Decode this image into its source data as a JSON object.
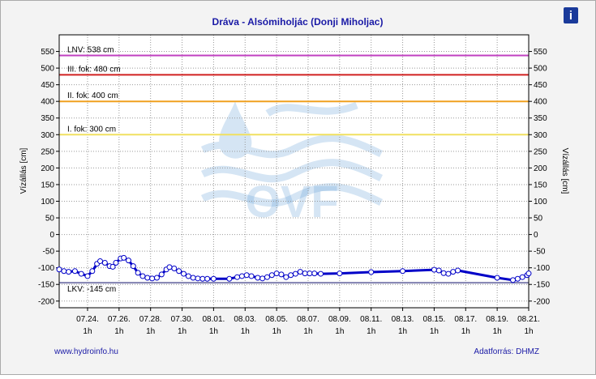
{
  "chart_data": {
    "type": "line",
    "title": "Dráva - Alsómiholjác (Donji Miholjac)",
    "y_label": "Vízállás [cm]",
    "y2_label": "Vízállás [cm]",
    "footer_left": "www.hydroinfo.hu",
    "footer_right": "Adatforrás: DHMZ",
    "info_icon": "i",
    "watermark": "OVF",
    "ylim": [
      -220,
      600
    ],
    "yticks": [
      -200,
      -150,
      -100,
      -50,
      0,
      50,
      100,
      150,
      200,
      250,
      300,
      350,
      400,
      450,
      500,
      550
    ],
    "xlim": [
      -1.8,
      28
    ],
    "xticks": [
      {
        "value": 0,
        "label": "07.24."
      },
      {
        "value": 2,
        "label": "07.26."
      },
      {
        "value": 4,
        "label": "07.28."
      },
      {
        "value": 6,
        "label": "07.30."
      },
      {
        "value": 8,
        "label": "08.01."
      },
      {
        "value": 10,
        "label": "08.03."
      },
      {
        "value": 12,
        "label": "08.05."
      },
      {
        "value": 14,
        "label": "08.07."
      },
      {
        "value": 16,
        "label": "08.09."
      },
      {
        "value": 18,
        "label": "08.11."
      },
      {
        "value": 20,
        "label": "08.13."
      },
      {
        "value": 22,
        "label": "08.15."
      },
      {
        "value": 24,
        "label": "08.17."
      },
      {
        "value": 26,
        "label": "08.19."
      },
      {
        "value": 28,
        "label": "08.21."
      }
    ],
    "xtick_hour_labels": [
      "1h",
      "1h",
      "1h",
      "1h",
      "1h",
      "1h",
      "1h",
      "1h",
      "1h",
      "1h",
      "1h",
      "1h",
      "1h",
      "1h",
      "1h"
    ],
    "grid": true,
    "reference_lines": [
      {
        "label": "LNV: 538 cm",
        "value": 538,
        "color": "#c040c0"
      },
      {
        "label": "III. fok: 480 cm",
        "value": 480,
        "color": "#d02020"
      },
      {
        "label": "II. fok: 400 cm",
        "value": 400,
        "color": "#f0a020"
      },
      {
        "label": "I. fok: 300 cm",
        "value": 300,
        "color": "#f0e060"
      },
      {
        "label": "LKV: -145 cm",
        "value": -145,
        "color": "#8080b0"
      }
    ],
    "series": [
      {
        "color": "#0000c8",
        "x": [
          -1.8,
          -1.5,
          -1.2,
          -0.8,
          -0.4,
          0,
          0.3,
          0.6,
          0.8,
          1.1,
          1.4,
          1.6,
          1.8,
          2.1,
          2.3,
          2.6,
          2.9,
          3.2,
          3.5,
          3.8,
          4.1,
          4.4,
          4.7,
          5.0,
          5.2,
          5.5,
          5.8,
          6.1,
          6.4,
          6.7,
          7.0,
          7.3,
          7.6,
          8.0,
          9.0,
          9.5,
          9.8,
          10.1,
          10.4,
          10.8,
          11.1,
          11.4,
          11.7,
          12.0,
          12.3,
          12.6,
          12.9,
          13.2,
          13.5,
          13.8,
          14.1,
          14.4,
          14.8,
          16,
          18,
          20,
          22,
          22.3,
          22.6,
          22.9,
          23.2,
          23.5,
          26,
          27,
          27.3,
          27.6,
          27.9,
          28
        ],
        "values": [
          -105,
          -110,
          -112,
          -110,
          -118,
          -125,
          -110,
          -88,
          -80,
          -85,
          -95,
          -97,
          -85,
          -72,
          -70,
          -78,
          -95,
          -115,
          -125,
          -130,
          -132,
          -130,
          -120,
          -105,
          -98,
          -102,
          -110,
          -118,
          -125,
          -130,
          -132,
          -133,
          -133,
          -133,
          -133,
          -128,
          -125,
          -122,
          -125,
          -130,
          -132,
          -128,
          -122,
          -117,
          -120,
          -128,
          -122,
          -118,
          -112,
          -117,
          -117,
          -117,
          -118,
          -117,
          -113,
          -110,
          -106,
          -108,
          -116,
          -118,
          -112,
          -108,
          -130,
          -137,
          -133,
          -128,
          -122,
          -117
        ]
      }
    ]
  }
}
